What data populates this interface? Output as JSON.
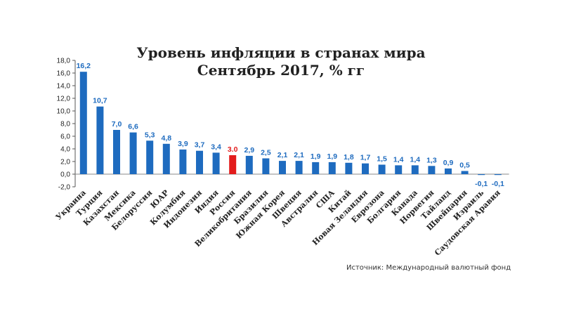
{
  "title_line1": "Уровень инфляции в странах мира",
  "title_line2": "Сентябрь 2017, % гг",
  "source": "Источник: Международный валютный фонд",
  "colors": {
    "bar": "#1e6bbf",
    "highlight": "#e31b1b",
    "label": "#1e6bbf",
    "highlight_label": "#e31b1b"
  },
  "chart_data": {
    "type": "bar",
    "title": "Уровень инфляции в странах мира Сентябрь 2017, % гг",
    "xlabel": "",
    "ylabel": "",
    "ylim": [
      -2.0,
      18.0
    ],
    "yticks": [
      "-2,0",
      "0,0",
      "2,0",
      "4,0",
      "6,0",
      "8,0",
      "10,0",
      "12,0",
      "14,0",
      "16,0",
      "18,0"
    ],
    "grid": false,
    "highlight_category": "Россия",
    "categories": [
      "Украина",
      "Турция",
      "Казахстан",
      "Мексика",
      "Белоруссия",
      "ЮАР",
      "Колумбия",
      "Индонезия",
      "Индия",
      "Россия",
      "Великобритания",
      "Бразилия",
      "Южная Корея",
      "Швеция",
      "Австралия",
      "США",
      "Китай",
      "Новая Зеландия",
      "Еврозона",
      "Болгария",
      "Канада",
      "Норвегия",
      "Тайланд",
      "Швейцария",
      "Израиль",
      "Саудовская Аравия"
    ],
    "values": [
      16.2,
      10.7,
      7.0,
      6.6,
      5.3,
      4.8,
      3.9,
      3.7,
      3.4,
      3.0,
      2.9,
      2.5,
      2.1,
      2.1,
      1.9,
      1.9,
      1.8,
      1.7,
      1.5,
      1.4,
      1.4,
      1.3,
      0.9,
      0.5,
      -0.1,
      -0.1
    ],
    "labels": [
      "16,2",
      "10,7",
      "7,0",
      "6,6",
      "5,3",
      "4,8",
      "3,9",
      "3,7",
      "3,4",
      "3.0",
      "2,9",
      "2,5",
      "2,1",
      "2,1",
      "1,9",
      "1,9",
      "1,8",
      "1,7",
      "1,5",
      "1,4",
      "1,4",
      "1,3",
      "0,9",
      "0,5",
      "-0,1",
      "-0,1"
    ]
  }
}
